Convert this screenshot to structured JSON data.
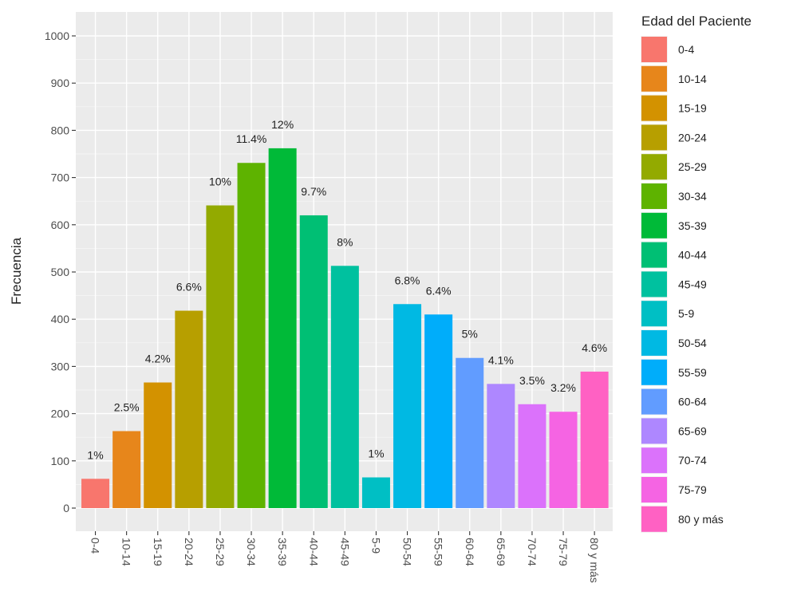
{
  "chart_data": {
    "type": "bar",
    "ylabel": "Frecuencia",
    "xlabel": "",
    "ylim": [
      0,
      1000
    ],
    "yticks": [
      0,
      100,
      200,
      300,
      400,
      500,
      600,
      700,
      800,
      900,
      1000
    ],
    "grid": true,
    "legend_position": "right",
    "legend_title": "Edad del Paciente",
    "categories": [
      "0-4",
      "10-14",
      "15-19",
      "20-24",
      "25-29",
      "30-34",
      "35-39",
      "40-44",
      "45-49",
      "5-9",
      "50-54",
      "55-59",
      "60-64",
      "65-69",
      "70-74",
      "75-79",
      "80 y más"
    ],
    "values": [
      62,
      163,
      266,
      418,
      641,
      731,
      762,
      620,
      513,
      65,
      432,
      410,
      318,
      263,
      220,
      204,
      289
    ],
    "labels": [
      "1%",
      "2.5%",
      "4.2%",
      "6.6%",
      "10%",
      "11.4%",
      "12%",
      "9.7%",
      "8%",
      "1%",
      "6.8%",
      "6.4%",
      "5%",
      "4.1%",
      "3.5%",
      "3.2%",
      "4.6%"
    ],
    "colors": [
      "#F8766D",
      "#E7861B",
      "#D39200",
      "#B79F00",
      "#93AA00",
      "#5EB300",
      "#00BA38",
      "#00BF74",
      "#00C19F",
      "#00BFC4",
      "#00B9E3",
      "#00ADFA",
      "#619CFF",
      "#AE87FF",
      "#DB72FB",
      "#F564E3",
      "#FF61C3"
    ]
  }
}
